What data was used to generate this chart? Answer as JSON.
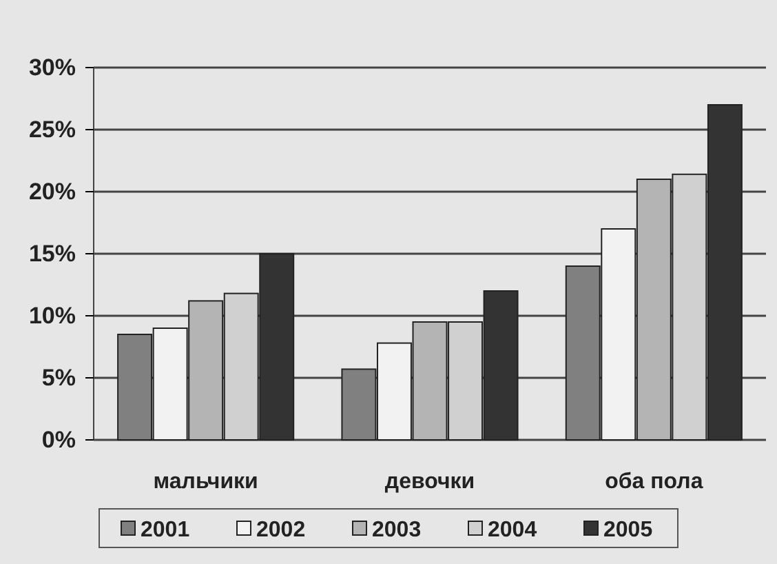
{
  "chart_data": {
    "type": "bar",
    "categories": [
      "мальчики",
      "девочки",
      "оба пола"
    ],
    "series": [
      {
        "name": "2001",
        "color": "#808080",
        "values": [
          8.5,
          5.7,
          14
        ]
      },
      {
        "name": "2002",
        "color": "#f2f2f2",
        "values": [
          9,
          7.8,
          17
        ]
      },
      {
        "name": "2003",
        "color": "#b4b4b4",
        "values": [
          11.2,
          9.5,
          21
        ]
      },
      {
        "name": "2004",
        "color": "#d0d0d0",
        "values": [
          11.8,
          9.5,
          21.4
        ]
      },
      {
        "name": "2005",
        "color": "#333333",
        "values": [
          15,
          12,
          27
        ]
      }
    ],
    "ylim": [
      0,
      30
    ],
    "yticks": [
      {
        "value": 0,
        "label": "0%"
      },
      {
        "value": 5,
        "label": "5%"
      },
      {
        "value": 10,
        "label": "10%"
      },
      {
        "value": 15,
        "label": "15%"
      },
      {
        "value": 20,
        "label": "20%"
      },
      {
        "value": 25,
        "label": "25%"
      },
      {
        "value": 30,
        "label": "30%"
      }
    ],
    "grid": "y",
    "legend": "bottom"
  }
}
